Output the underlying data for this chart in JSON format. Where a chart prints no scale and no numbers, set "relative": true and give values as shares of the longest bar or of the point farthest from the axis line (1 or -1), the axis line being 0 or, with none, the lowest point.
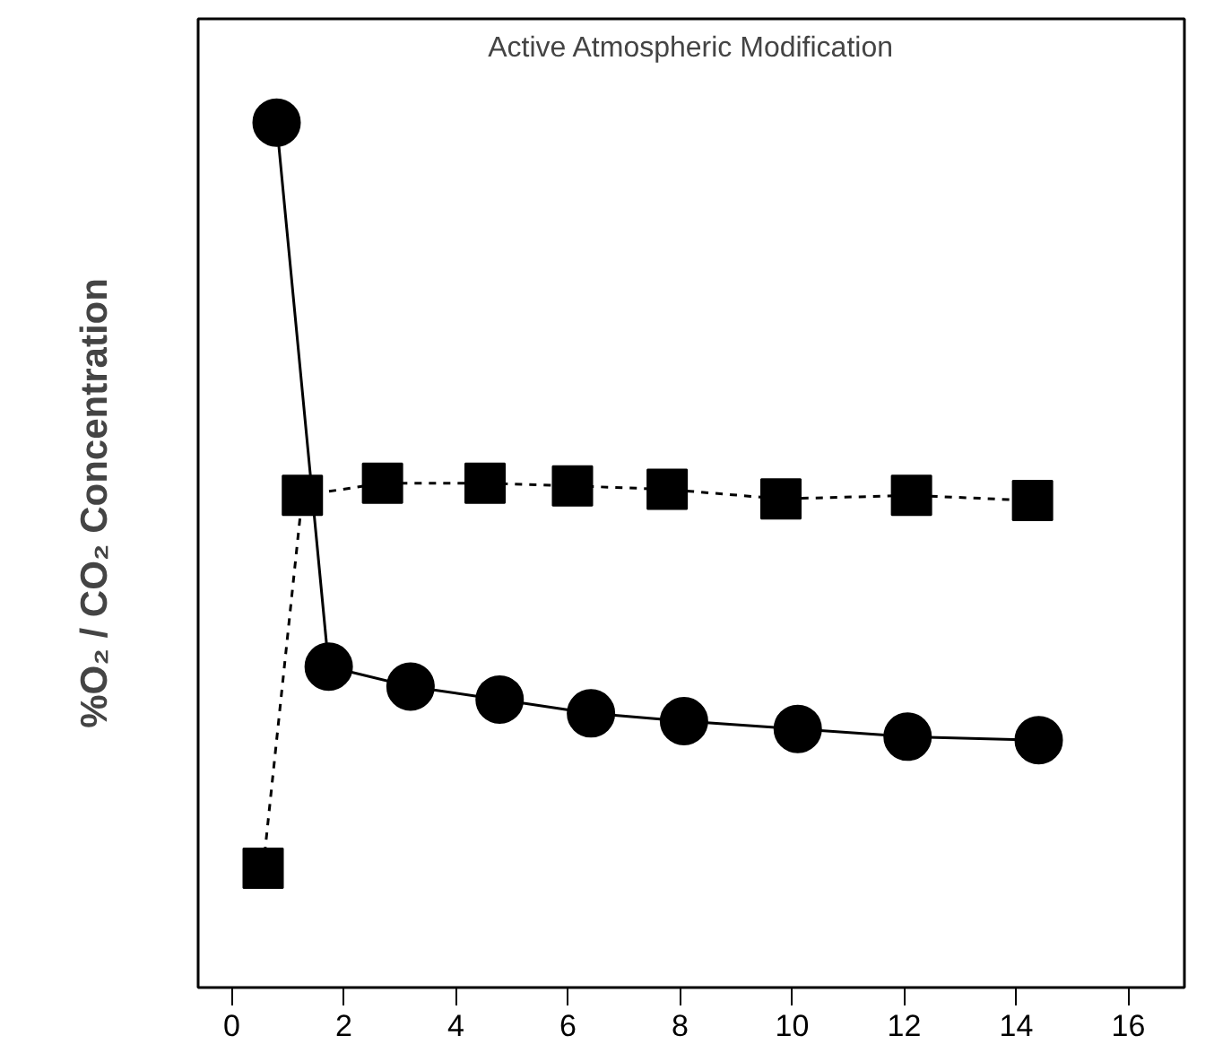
{
  "chart_data": {
    "type": "line",
    "title": "Active Atmospheric Modification",
    "ylabel": "%O₂ / CO₂ Concentration",
    "relative": true,
    "xlim": [
      -0.6,
      17
    ],
    "xticks": [
      0,
      2,
      4,
      6,
      8,
      10,
      12,
      14,
      16
    ],
    "grid": false,
    "tick_labels": "x",
    "series": [
      {
        "color": "#000000",
        "marker": "circle",
        "line_style": "solid",
        "x": [
          0.8,
          1.73,
          3.19,
          4.78,
          6.41,
          8.07,
          10.1,
          12.06,
          14.4
        ],
        "values": [
          1,
          0.371,
          0.348,
          0.333,
          0.317,
          0.308,
          0.299,
          0.29,
          0.286
        ]
      },
      {
        "color": "#000000",
        "marker": "square",
        "line_style": "dashed",
        "x": [
          0.56,
          1.26,
          2.69,
          4.52,
          6.08,
          7.77,
          9.8,
          12.13,
          14.29
        ],
        "values": [
          0.138,
          0.569,
          0.583,
          0.583,
          0.58,
          0.576,
          0.565,
          0.569,
          0.563
        ]
      }
    ]
  }
}
